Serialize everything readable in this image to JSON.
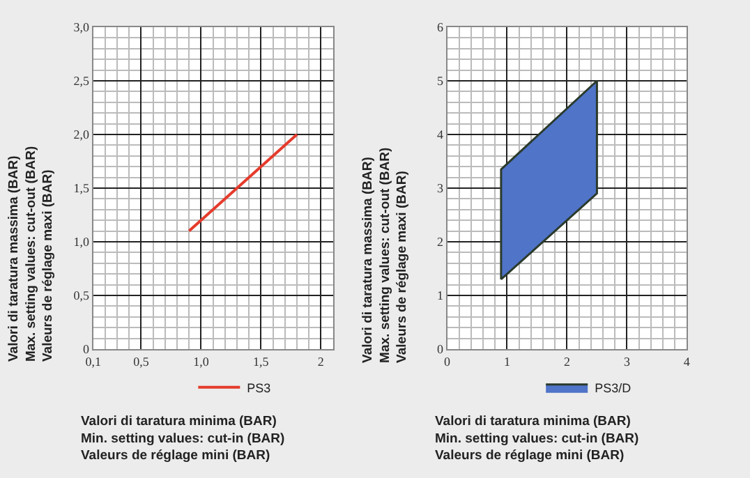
{
  "chart_data": [
    {
      "type": "line",
      "x": [
        0.9,
        1.8
      ],
      "series": [
        {
          "name": "PS3",
          "color": "#e53b2c",
          "values": [
            1.1,
            2.0
          ]
        }
      ],
      "xlim": [
        0.1,
        2.1
      ],
      "xticks": [
        {
          "value": 0.1,
          "label": "0,1"
        },
        {
          "value": 0.5,
          "label": "0,5"
        },
        {
          "value": 1.0,
          "label": "1,0"
        },
        {
          "value": 1.5,
          "label": "1,5"
        },
        2
      ],
      "ylim": [
        0,
        3
      ],
      "yticks": [
        0,
        {
          "value": 0.5,
          "label": "0,5"
        },
        {
          "value": 1.0,
          "label": "1,0"
        },
        {
          "value": 1.5,
          "label": "1,5"
        },
        {
          "value": 2.0,
          "label": "2,0"
        },
        {
          "value": 2.5,
          "label": "2,5"
        },
        {
          "value": 3.0,
          "label": "3,0"
        }
      ],
      "grid": true,
      "legend": "bottom",
      "xlabel": "Valori di taratura minima (BAR)\nMin. setting values: cut-in (BAR)\nValeurs de réglage mini (BAR)",
      "ylabel": "Valori di taratura massima (BAR)\nMax. setting values: cut-out (BAR)\nValeurs de réglage maxi (BAR)"
    },
    {
      "type": "area",
      "x": [
        0.9,
        0.9,
        2.5,
        2.5,
        0.9
      ],
      "series": [
        {
          "name": "PS3/D",
          "color": "#4f74c8",
          "values": [
            1.3,
            3.35,
            5.0,
            2.9,
            1.3
          ]
        }
      ],
      "xlim": [
        0,
        4
      ],
      "xticks": [
        0,
        1,
        2,
        3,
        4
      ],
      "ylim": [
        0,
        6
      ],
      "yticks": [
        0,
        1,
        2,
        3,
        4,
        5,
        6
      ],
      "grid": true,
      "legend": "bottom",
      "xlabel": "Valori di taratura minima (BAR)\nMin. setting values: cut-in (BAR)\nValeurs de réglage mini (BAR)",
      "ylabel": "Valori di taratura massima (BAR)\nMax. setting values: cut-out (BAR)\nValeurs de réglage maxi (BAR)"
    }
  ]
}
